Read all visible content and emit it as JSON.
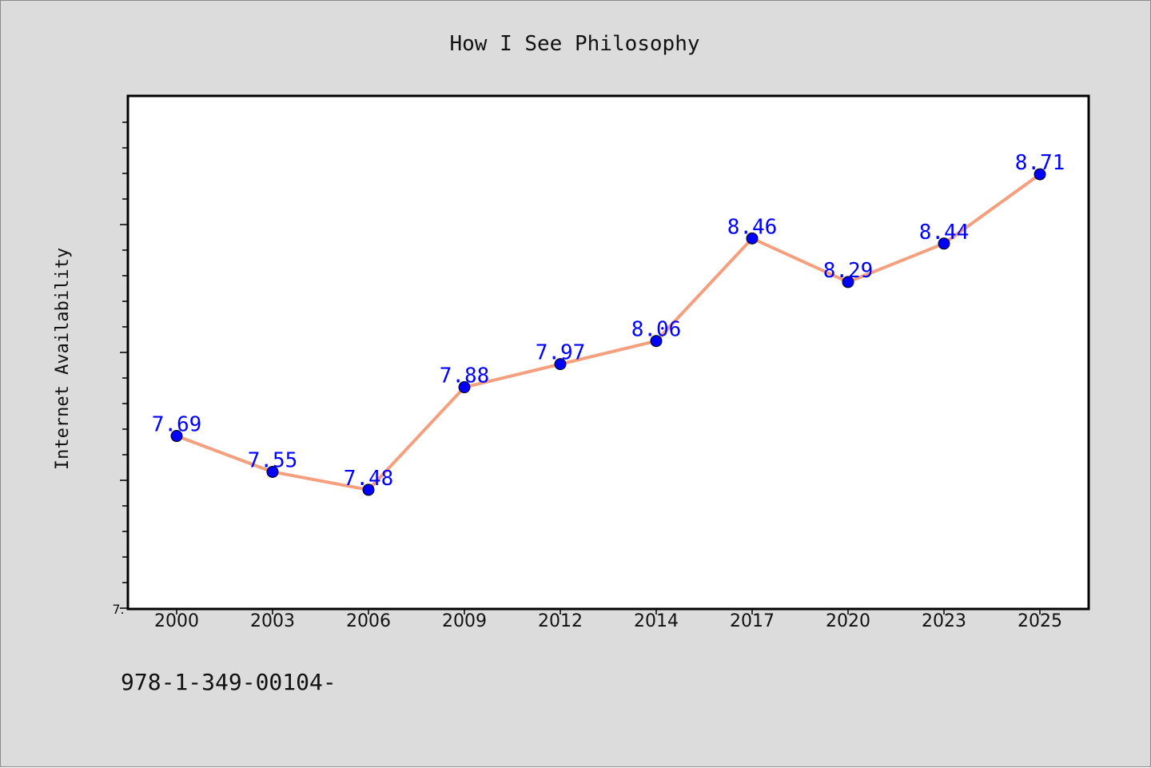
{
  "chart_data": {
    "type": "line",
    "title": "How I See Philosophy",
    "xlabel": "",
    "ylabel": "Internet Availability",
    "categories": [
      "2000",
      "2003",
      "2006",
      "2009",
      "2012",
      "2014",
      "2017",
      "2020",
      "2023",
      "2025"
    ],
    "series": [
      {
        "values": [
          7.69,
          7.55,
          7.48,
          7.88,
          7.97,
          8.06,
          8.46,
          8.29,
          8.44,
          8.71
        ]
      }
    ],
    "data_labels": [
      "7.69",
      "7.55",
      "7.48",
      "7.88",
      "7.97",
      "8.06",
      "8.46",
      "8.29",
      "8.44",
      "8.71"
    ],
    "y_tick_label_min": "7.",
    "ylim": [
      7.0,
      9.0
    ],
    "grid": false,
    "legend": "none",
    "colors": {
      "line": "#f4a07e",
      "marker": "#0000ff",
      "label": "#0000ff",
      "background": "#dcdcdc",
      "plot_area": "#ffffff"
    }
  },
  "footer": {
    "isbn_text": "978-1-349-00104-"
  }
}
